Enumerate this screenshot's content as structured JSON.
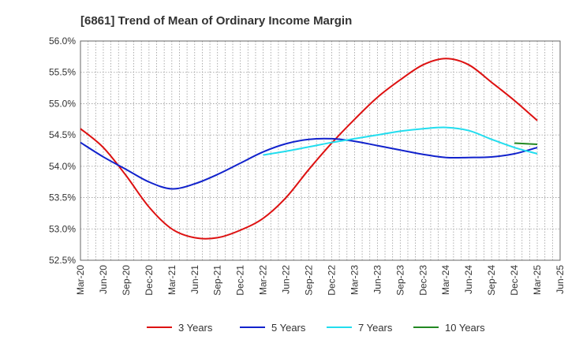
{
  "chart_data": {
    "type": "line",
    "title": "[6861]  Trend of Mean of Ordinary Income Margin",
    "xlabel": "",
    "ylabel": "",
    "x_ticks": [
      "Mar-20",
      "Jun-20",
      "Sep-20",
      "Dec-20",
      "Mar-21",
      "Jun-21",
      "Sep-21",
      "Dec-21",
      "Mar-22",
      "Jun-22",
      "Sep-22",
      "Dec-22",
      "Mar-23",
      "Jun-23",
      "Sep-23",
      "Dec-23",
      "Mar-24",
      "Jun-24",
      "Sep-24",
      "Dec-24",
      "Mar-25",
      "Jun-25"
    ],
    "y_ticks": [
      "52.5%",
      "53.0%",
      "53.5%",
      "54.0%",
      "54.5%",
      "55.0%",
      "55.5%",
      "56.0%"
    ],
    "ylim": [
      52.5,
      56.0
    ],
    "grid": true,
    "legend_position": "bottom",
    "series": [
      {
        "name": "3 Years",
        "color": "#dd1111",
        "x": [
          "Mar-20",
          "Jun-20",
          "Sep-20",
          "Dec-20",
          "Mar-21",
          "Jun-21",
          "Sep-21",
          "Dec-21",
          "Mar-22",
          "Jun-22",
          "Sep-22",
          "Dec-22",
          "Mar-23",
          "Jun-23",
          "Sep-23",
          "Dec-23",
          "Mar-24",
          "Jun-24",
          "Sep-24",
          "Dec-24",
          "Mar-25"
        ],
        "values": [
          54.6,
          54.3,
          53.85,
          53.35,
          53.0,
          52.86,
          52.86,
          52.98,
          53.17,
          53.5,
          53.95,
          54.37,
          54.75,
          55.1,
          55.38,
          55.62,
          55.72,
          55.62,
          55.34,
          55.05,
          54.73
        ]
      },
      {
        "name": "5 Years",
        "color": "#1122cc",
        "x": [
          "Mar-20",
          "Jun-20",
          "Sep-20",
          "Dec-20",
          "Mar-21",
          "Jun-21",
          "Sep-21",
          "Dec-21",
          "Mar-22",
          "Jun-22",
          "Sep-22",
          "Dec-22",
          "Mar-23",
          "Jun-23",
          "Sep-23",
          "Dec-23",
          "Mar-24",
          "Jun-24",
          "Sep-24",
          "Dec-24",
          "Mar-25"
        ],
        "values": [
          54.38,
          54.15,
          53.95,
          53.75,
          53.64,
          53.72,
          53.87,
          54.05,
          54.23,
          54.36,
          54.43,
          54.44,
          54.4,
          54.33,
          54.26,
          54.19,
          54.14,
          54.14,
          54.15,
          54.2,
          54.3
        ]
      },
      {
        "name": "7 Years",
        "color": "#22ddee",
        "x": [
          "Mar-22",
          "Jun-22",
          "Sep-22",
          "Dec-22",
          "Mar-23",
          "Jun-23",
          "Sep-23",
          "Dec-23",
          "Mar-24",
          "Jun-24",
          "Sep-24",
          "Dec-24",
          "Mar-25"
        ],
        "values": [
          54.18,
          54.24,
          54.31,
          54.38,
          54.44,
          54.5,
          54.56,
          54.6,
          54.62,
          54.57,
          54.43,
          54.3,
          54.2
        ]
      },
      {
        "name": "10 Years",
        "color": "#228822",
        "x": [
          "Dec-24",
          "Mar-25"
        ],
        "values": [
          54.37,
          54.35
        ]
      }
    ]
  }
}
